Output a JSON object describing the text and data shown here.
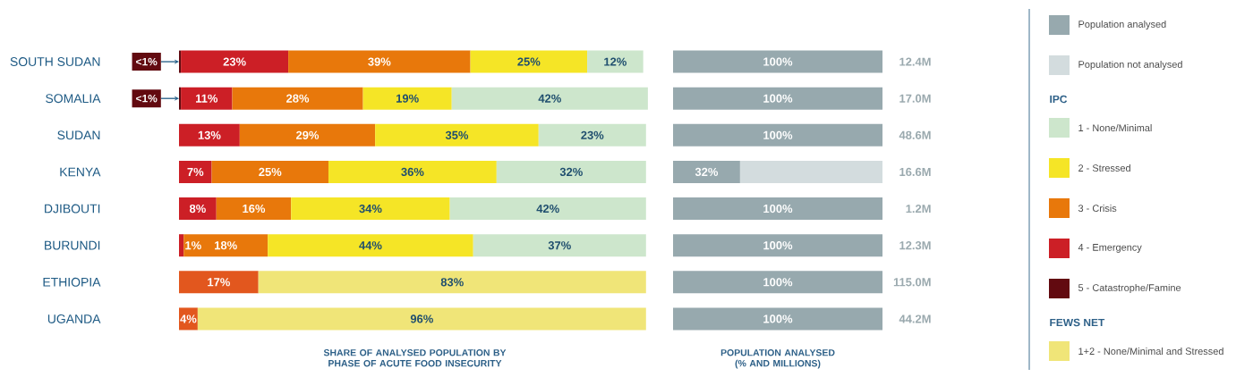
{
  "chart_data": [
    {
      "type": "bar",
      "orientation": "horizontal",
      "stacked": true,
      "xlim": [
        0,
        101
      ],
      "tick_labels": "y",
      "legend": "right",
      "legend_title": "IPC",
      "annotations": [
        "FEWS NET"
      ],
      "xlabel": "SHARE OF ANALYSED POPULATION BY PHASE OF ACUTE FOOD INSECURITY",
      "categories": [
        "SOUTH SUDAN",
        "SOMALIA",
        "SUDAN",
        "KENYA",
        "DJIBOUTI",
        "BURUNDI",
        "ETHIOPIA",
        "UGANDA"
      ],
      "series": [
        {
          "color": "#e2571e",
          "values": [
            null,
            null,
            null,
            null,
            null,
            null,
            17,
            4
          ],
          "value_labels": [
            null,
            null,
            null,
            null,
            null,
            null,
            "17%",
            "4%"
          ]
        },
        {
          "name": "5 - Catastrophe/Famine",
          "color": "#620a10",
          "values": [
            0.4,
            0.4,
            null,
            null,
            null,
            null,
            null,
            null
          ],
          "value_labels": [
            "<1%",
            "<1%",
            null,
            null,
            null,
            null,
            null,
            null
          ]
        },
        {
          "name": "4 - Emergency",
          "color": "#cc1f26",
          "values": [
            23,
            11,
            13,
            7,
            8,
            1,
            null,
            null
          ],
          "value_labels": [
            "23%",
            "11%",
            "13%",
            "7%",
            "8%",
            "1%",
            null,
            null
          ]
        },
        {
          "name": "3 - Crisis",
          "color": "#e8780b",
          "values": [
            39,
            28,
            29,
            25,
            16,
            18,
            null,
            null
          ],
          "value_labels": [
            "39%",
            "28%",
            "29%",
            "25%",
            "16%",
            "18%",
            null,
            null
          ]
        },
        {
          "name": "2 - Stressed",
          "color": "#f5e526",
          "values": [
            25,
            19,
            35,
            36,
            34,
            44,
            null,
            null
          ],
          "value_labels": [
            "25%",
            "19%",
            "35%",
            "36%",
            "34%",
            "44%",
            null,
            null
          ]
        },
        {
          "name": "1 - None/Minimal",
          "color": "#cde6cc",
          "values": [
            12,
            42,
            23,
            32,
            42,
            37,
            null,
            null
          ],
          "value_labels": [
            "12%",
            "42%",
            "23%",
            "32%",
            "42%",
            "37%",
            null,
            null
          ]
        },
        {
          "name": "1+2 - None/Minimal and Stressed",
          "color": "#f0e578",
          "values": [
            null,
            null,
            null,
            null,
            null,
            null,
            83,
            96
          ],
          "value_labels": [
            null,
            null,
            null,
            null,
            null,
            null,
            "83%",
            "96%"
          ]
        }
      ]
    },
    {
      "type": "bar",
      "orientation": "horizontal",
      "stacked": true,
      "xlim": [
        0,
        100
      ],
      "tick_labels": false,
      "legend": "right",
      "xlabel": "POPULATION ANALYSED (% AND MILLIONS)",
      "categories": [
        null,
        null,
        null,
        null,
        null,
        null,
        null,
        null
      ],
      "series": [
        {
          "name": "Population analysed",
          "color": "#97a9ae",
          "values": [
            100,
            100,
            100,
            32,
            100,
            100,
            100,
            100
          ],
          "value_labels": [
            "100%",
            "100%",
            "100%",
            "32%",
            "100%",
            "100%",
            "100%",
            "100%"
          ]
        },
        {
          "name": "Population not analysed",
          "color": "#d3dcde",
          "values": [
            null,
            null,
            null,
            68,
            null,
            null,
            null,
            null
          ]
        }
      ],
      "annotations": [
        "12.4M",
        "17.0M",
        "48.6M",
        "16.6M",
        "1.2M",
        "12.3M",
        "115.0M",
        "44.2M"
      ]
    }
  ]
}
